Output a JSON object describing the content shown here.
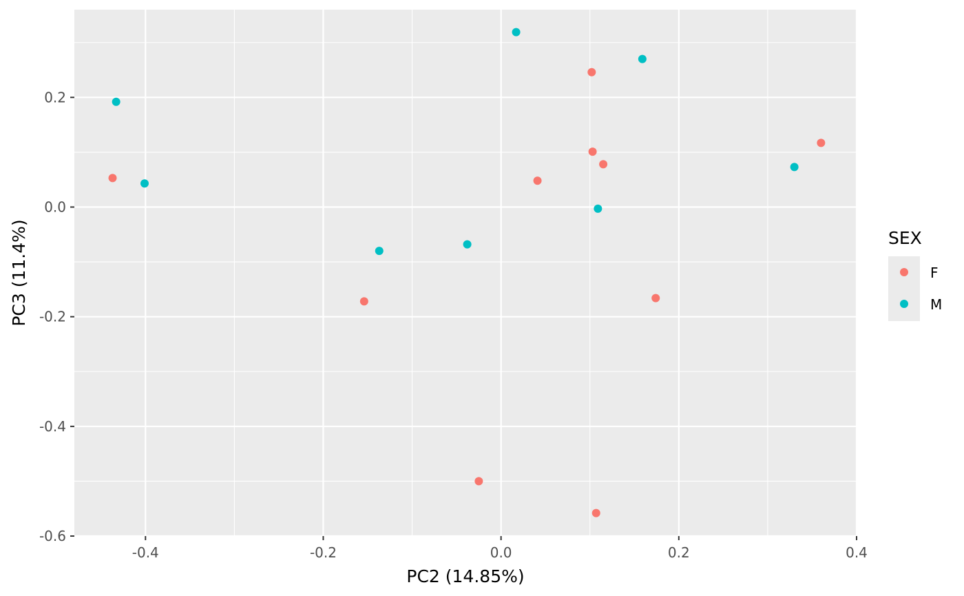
{
  "chart_data": {
    "type": "scatter",
    "title": "",
    "xlabel": "PC2 (14.85%)",
    "ylabel": "PC3 (11.4%)",
    "xlim": [
      -0.48,
      0.4
    ],
    "ylim": [
      -0.6,
      0.36
    ],
    "xticks": [
      -0.4,
      -0.2,
      0.0,
      0.2,
      0.4
    ],
    "xtick_labels": [
      "-0.4",
      "-0.2",
      "0.0",
      "0.2",
      "0.4"
    ],
    "yticks": [
      -0.6,
      -0.4,
      -0.2,
      0.0,
      0.2
    ],
    "ytick_labels": [
      "-0.6",
      "-0.4",
      "-0.2",
      "0.0",
      "0.2"
    ],
    "grid": true,
    "background": "#ebebeb",
    "legend": {
      "title": "SEX",
      "position": "right",
      "entries": [
        {
          "label": "F",
          "color": "#f8766d"
        },
        {
          "label": "M",
          "color": "#00bfc4"
        }
      ]
    },
    "series": [
      {
        "name": "F",
        "color": "#f8766d",
        "points": [
          {
            "x": -0.437,
            "y": 0.053
          },
          {
            "x": 0.102,
            "y": 0.246
          },
          {
            "x": 0.103,
            "y": 0.101
          },
          {
            "x": 0.115,
            "y": 0.078
          },
          {
            "x": 0.041,
            "y": 0.048
          },
          {
            "x": 0.36,
            "y": 0.117
          },
          {
            "x": -0.154,
            "y": -0.172
          },
          {
            "x": 0.174,
            "y": -0.166
          },
          {
            "x": -0.025,
            "y": -0.5
          },
          {
            "x": 0.107,
            "y": -0.558
          }
        ]
      },
      {
        "name": "M",
        "color": "#00bfc4",
        "points": [
          {
            "x": 0.017,
            "y": 0.319
          },
          {
            "x": 0.159,
            "y": 0.27
          },
          {
            "x": -0.433,
            "y": 0.192
          },
          {
            "x": -0.401,
            "y": 0.043
          },
          {
            "x": 0.33,
            "y": 0.073
          },
          {
            "x": 0.109,
            "y": -0.003
          },
          {
            "x": -0.137,
            "y": -0.08
          },
          {
            "x": -0.038,
            "y": -0.068
          }
        ]
      }
    ]
  }
}
